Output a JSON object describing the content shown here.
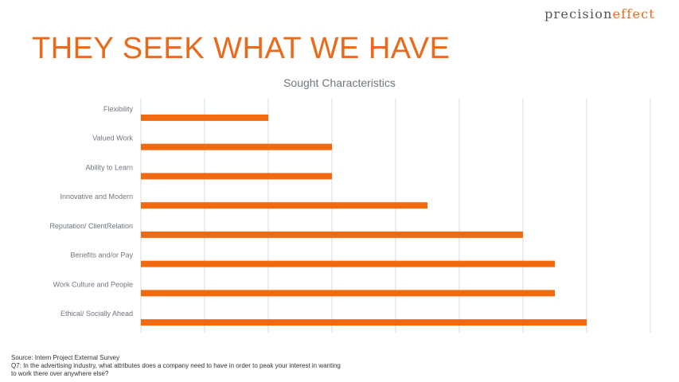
{
  "brand": {
    "logo_plain": "precision",
    "logo_accent": "effect"
  },
  "slide": {
    "headline": "THEY SEEK WHAT WE HAVE"
  },
  "footer": {
    "source": "Source: Intern Project External Survey",
    "question_line1": "Q7:  In the advertising industry, what attributes does a company need to have in order to peak your interest in wanting",
    "question_line2": "to work there over anywhere else?"
  },
  "colors": {
    "accent": "#e86a1a",
    "bar": "#f26a0f",
    "grid": "#d9d9d9",
    "label": "#6f7780"
  },
  "chart_data": {
    "type": "bar",
    "orientation": "horizontal",
    "title": "Sought Characteristics",
    "categories": [
      "Flexibility",
      "Valued Work",
      "Ability to Learn",
      "Innovative and Modern",
      "Reputation/ ClientRelation",
      "Benefits and/or Pay",
      "Work Culture and People",
      "Ethical/ Socially Ahead"
    ],
    "values": [
      2,
      3,
      3,
      4.5,
      6,
      6.5,
      6.5,
      7
    ],
    "xlim": [
      0,
      8
    ],
    "grid": true,
    "axis_tick_labels_visible": false
  }
}
